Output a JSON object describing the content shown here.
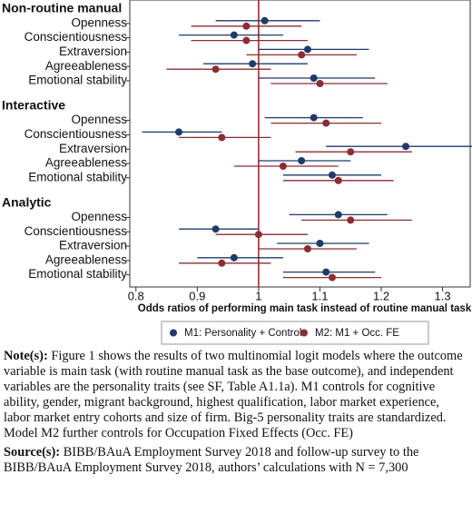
{
  "chart_data": {
    "type": "dot-ci",
    "categories": [
      "Non-routine manual",
      "Openness",
      "Conscientiousness",
      "Extraversion",
      "Agreeableness",
      "Emotional stability",
      "Interactive",
      "Openness",
      "Conscientiousness",
      "Extraversion",
      "Agreeableness",
      "Emotional stability",
      "Analytic",
      "Openness",
      "Conscientiousness",
      "Extraversion",
      "Agreeableness",
      "Emotional stability"
    ],
    "series": [
      {
        "name": "M1: Personality + Controls",
        "color": "#1f3b6b",
        "values": [
          null,
          1.01,
          0.96,
          1.08,
          0.99,
          1.09,
          null,
          1.09,
          0.87,
          1.24,
          1.07,
          1.12,
          null,
          1.13,
          0.93,
          1.1,
          0.96,
          1.11
        ],
        "lower": [
          null,
          0.93,
          0.87,
          1.0,
          0.91,
          1.0,
          null,
          1.01,
          0.81,
          1.11,
          1.0,
          1.04,
          null,
          1.05,
          0.87,
          1.03,
          0.9,
          1.04
        ],
        "upper": [
          null,
          1.1,
          1.04,
          1.18,
          1.08,
          1.19,
          null,
          1.17,
          0.94,
          1.36,
          1.15,
          1.2,
          null,
          1.21,
          1.0,
          1.18,
          1.04,
          1.19
        ]
      },
      {
        "name": "M2: M1 + Occ. FE",
        "color": "#8c2d33",
        "values": [
          null,
          0.98,
          0.98,
          1.07,
          0.93,
          1.1,
          null,
          1.11,
          0.94,
          1.15,
          1.04,
          1.13,
          null,
          1.15,
          1.0,
          1.08,
          0.94,
          1.12
        ],
        "lower": [
          null,
          0.89,
          0.89,
          0.98,
          0.85,
          1.02,
          null,
          1.02,
          0.87,
          1.06,
          0.96,
          1.04,
          null,
          1.07,
          0.93,
          1.0,
          0.87,
          1.04
        ],
        "upper": [
          null,
          1.07,
          1.08,
          1.16,
          1.02,
          1.21,
          null,
          1.2,
          1.02,
          1.25,
          1.13,
          1.22,
          null,
          1.25,
          1.08,
          1.16,
          1.02,
          1.2
        ]
      }
    ],
    "x_label": "Odds ratios of performing main task instead of routine manual task",
    "xlim": [
      0.79,
      1.345
    ],
    "xticks": [
      0.8,
      0.9,
      1,
      1.1,
      1.2,
      1.3
    ],
    "reference_line": 1,
    "reference_color": "#9b1c24",
    "legend": "bottom"
  },
  "notes": [
    {
      "label": "Note(s):",
      "text": "Figure 1 shows the results of two multinomial logit models where the outcome variable is main task (with routine manual task as the base outcome), and independent variables are the personality traits (see SF, Table A1.1a). M1 controls for cognitive ability, gender, migrant background, highest qualification, labor market experience, labor market entry cohorts and size of firm. Big-5 personality traits are standardized. Model M2 further controls for Occupation Fixed Effects (Occ. FE)"
    },
    {
      "label": "Source(s):",
      "text": "BIBB/BAuA Employment Survey 2018 and follow-up survey to the BIBB/BAuA Employment Survey 2018, authors’ calculations with N = 7,300"
    }
  ]
}
